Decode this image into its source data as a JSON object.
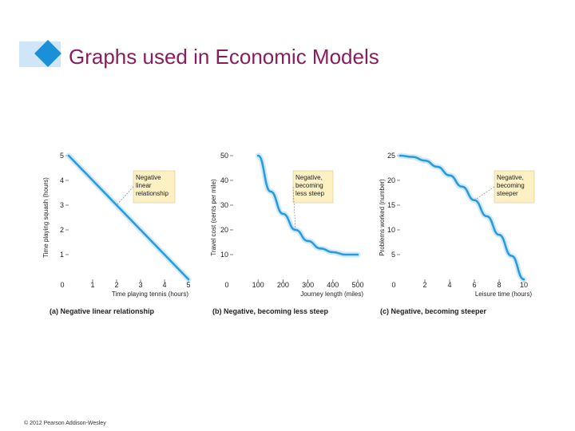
{
  "slide": {
    "title": "Graphs used in Economic Models",
    "copyright": "© 2012 Pearson Addison-Wesley"
  },
  "colors": {
    "title": "#8b1d5f",
    "accent": "#1a90d8",
    "line": "#2b9be0",
    "glow": "#bfe1f7",
    "callout_bg": "#fdf1c4"
  },
  "chart_data": [
    {
      "type": "line",
      "title": "(a) Negative linear relationship",
      "xlabel": "Time playing tennis (hours)",
      "ylabel": "Time playing squash (hours)",
      "xlim": [
        0,
        5
      ],
      "ylim": [
        0,
        5
      ],
      "xticks": [
        "0",
        "1",
        "2",
        "3",
        "4",
        "5"
      ],
      "yticks": [
        "1",
        "2",
        "3",
        "4",
        "5"
      ],
      "series": [
        {
          "x": [
            0,
            1,
            2,
            3,
            4,
            5
          ],
          "y": [
            5,
            4,
            3,
            2,
            1,
            0
          ]
        }
      ],
      "annotation": "Negative linear relationship"
    },
    {
      "type": "line",
      "title": "(b) Negative, becoming less steep",
      "xlabel": "Journey length (miles)",
      "ylabel": "Travel cost (cents per mile)",
      "xlim": [
        0,
        500
      ],
      "ylim": [
        0,
        50
      ],
      "xticks": [
        "0",
        "100",
        "200",
        "300",
        "400",
        "500"
      ],
      "yticks": [
        "10",
        "20",
        "30",
        "40",
        "50"
      ],
      "series": [
        {
          "x": [
            100,
            150,
            200,
            250,
            300,
            350,
            400,
            450,
            500
          ],
          "y": [
            50,
            35.5,
            26.5,
            20,
            15.5,
            12.5,
            11,
            10,
            10
          ]
        }
      ],
      "annotation": "Negative, becoming less steep"
    },
    {
      "type": "line",
      "title": "(c) Negative, becoming steeper",
      "xlabel": "Leisure time (hours)",
      "ylabel": "Problems worked (number)",
      "xlim": [
        0,
        10
      ],
      "ylim": [
        0,
        25
      ],
      "xticks": [
        "0",
        "2",
        "4",
        "6",
        "8",
        "10"
      ],
      "yticks": [
        "5",
        "10",
        "15",
        "20",
        "25"
      ],
      "series": [
        {
          "x": [
            0,
            1,
            2,
            3,
            4,
            5,
            6,
            7,
            8,
            9,
            10
          ],
          "y": [
            25,
            24.75,
            24,
            22.75,
            21,
            18.75,
            16,
            12.75,
            9,
            4.75,
            0
          ]
        }
      ],
      "annotation": "Negative, becoming steeper"
    }
  ]
}
